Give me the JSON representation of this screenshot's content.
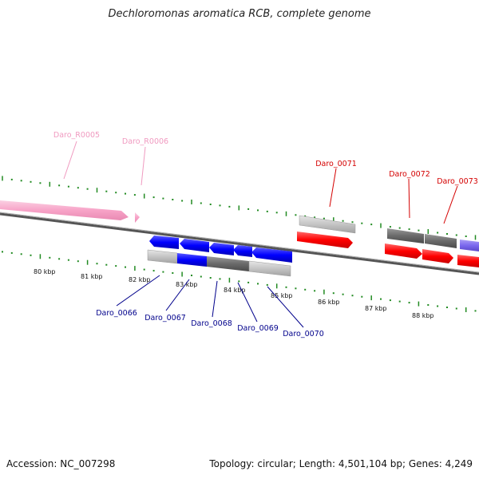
{
  "title": "Dechloromonas aromatica RCB, complete genome",
  "footer": {
    "accession": "Accession: NC_007298",
    "summary": "Topology: circular; Length: 4,501,104 bp; Genes: 4,249"
  },
  "colors": {
    "pink": "#f7a3c7",
    "red": "#ff0000",
    "blue": "#0000ff",
    "purple": "#7b68ee",
    "darkgray": "#707070",
    "lightgray": "#c4c4c4",
    "tick": "#228b22",
    "labelRed": "#d40000",
    "labelBlue": "#00008b",
    "labelPink": "#f09ac0"
  },
  "scale": {
    "labels": [
      "80 kbp",
      "81 kbp",
      "82 kbp",
      "83 kbp",
      "84 kbp",
      "85 kbp",
      "86 kbp",
      "87 kbp",
      "88 kbp"
    ]
  },
  "genes": [
    {
      "name": "Daro_R0005"
    },
    {
      "name": "Daro_R0006"
    },
    {
      "name": "Daro_0066"
    },
    {
      "name": "Daro_0067"
    },
    {
      "name": "Daro_0068"
    },
    {
      "name": "Daro_0069"
    },
    {
      "name": "Daro_0070"
    },
    {
      "name": "Daro_0071"
    },
    {
      "name": "Daro_0072"
    },
    {
      "name": "Daro_0073"
    }
  ]
}
